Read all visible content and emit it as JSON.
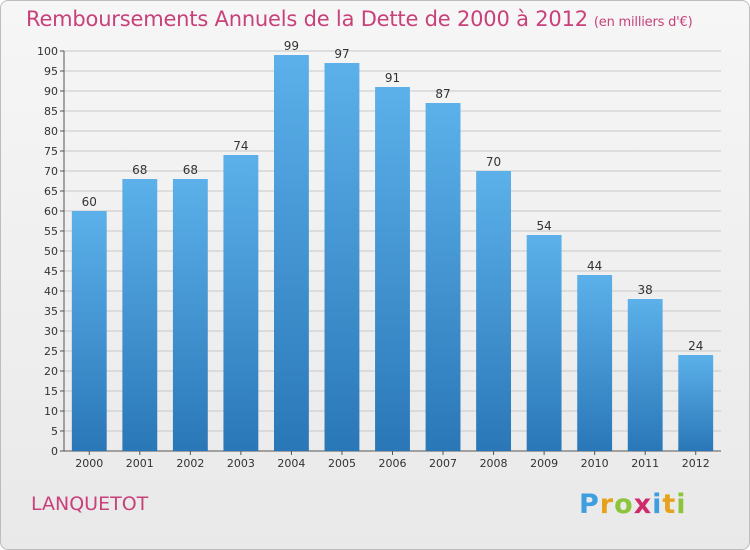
{
  "title": "Remboursements Annuels de la Dette de 2000 à 2012",
  "subtitle": "(en milliers d'€)",
  "commune": "LANQUETOT",
  "logo": {
    "letters": [
      "P",
      "r",
      "o",
      "x",
      "i",
      "t",
      "i"
    ],
    "colors": [
      "#3d9ee0",
      "#e6a21c",
      "#8cc43c",
      "#d02a6d",
      "#3d9ee0",
      "#e6a21c",
      "#8cc43c"
    ]
  },
  "colors": {
    "title": "#c8417a",
    "bar_top": "#5cb1ea",
    "bar_bottom": "#2a77b8",
    "grid": "#c8c8c8"
  },
  "chart_data": {
    "type": "bar",
    "title": "Remboursements Annuels de la Dette de 2000 à 2012",
    "subtitle": "(en milliers d'€)",
    "categories": [
      "2000",
      "2001",
      "2002",
      "2003",
      "2004",
      "2005",
      "2006",
      "2007",
      "2008",
      "2009",
      "2010",
      "2011",
      "2012"
    ],
    "values": [
      60,
      68,
      68,
      74,
      99,
      97,
      91,
      87,
      70,
      54,
      44,
      38,
      24
    ],
    "ylim": [
      0,
      100
    ],
    "yticks": [
      0,
      5,
      10,
      15,
      20,
      25,
      30,
      35,
      40,
      45,
      50,
      55,
      60,
      65,
      70,
      75,
      80,
      85,
      90,
      95,
      100
    ],
    "grid": true,
    "data_labels": true
  }
}
